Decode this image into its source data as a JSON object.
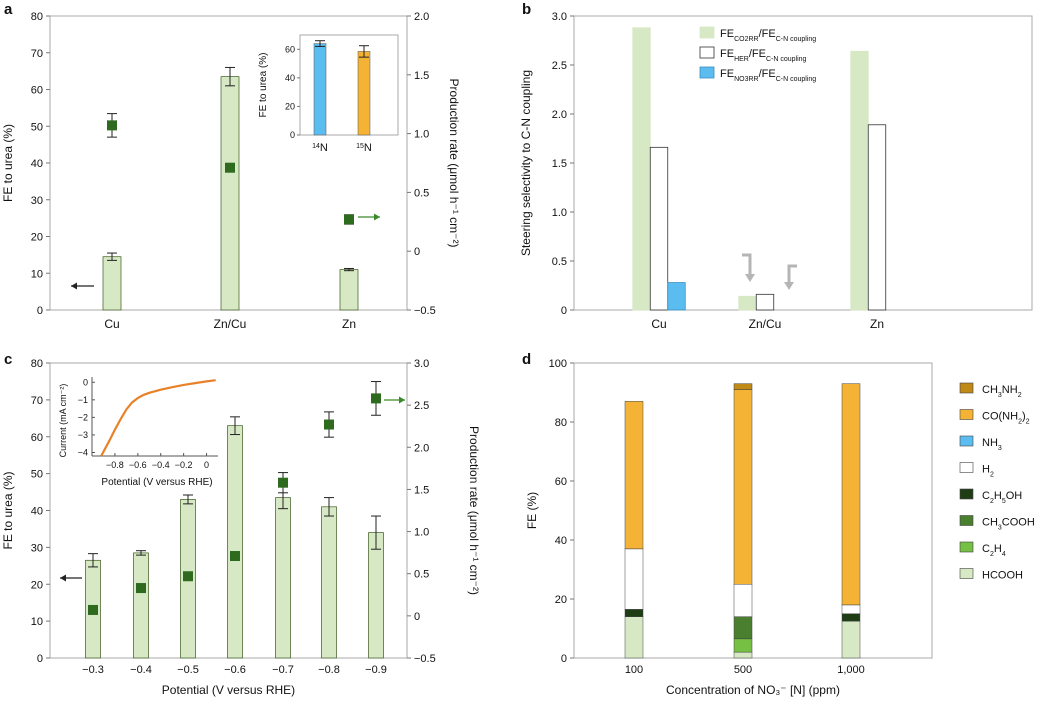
{
  "colors": {
    "bar_green": "#d6e9c4",
    "bar_edge": "#3c5a1e",
    "marker_green": "#2e6b1f",
    "axis_green": "#3a8a2a",
    "blue": "#5bbcf0",
    "orange_bar": "#f5b335",
    "curve_orange": "#e8822a",
    "arrow_grey": "#b5b5b5",
    "dark_green": "#1e3d14",
    "mid_green": "#4a7f2f",
    "light_green": "#76c043",
    "brown": "#c08a17"
  },
  "chart_data": [
    {
      "panel": "a",
      "type": "bar",
      "categories": [
        "Cu",
        "Zn/Cu",
        "Zn"
      ],
      "ylabel": "FE to urea (%)",
      "ylim": [
        0,
        80
      ],
      "yticks": [
        "0",
        "10",
        "20",
        "30",
        "40",
        "50",
        "60",
        "70",
        "80"
      ],
      "y2label": "Production rate (μmol h⁻¹ cm⁻²)",
      "y2lim": [
        -0.5,
        2.0
      ],
      "y2ticks": [
        "−0.5",
        "0",
        "0.5",
        "1.0",
        "1.5",
        "2.0"
      ],
      "fe_values": [
        14.5,
        63.5,
        11
      ],
      "fe_errors": [
        1,
        2.5,
        0.3
      ],
      "rate_values": [
        1.07,
        0.71,
        0.27
      ],
      "rate_errors": [
        0.1,
        0,
        0.04
      ],
      "inset": {
        "ylabel": "FE to urea (%)",
        "ylim": [
          0,
          70
        ],
        "yticks": [
          "0",
          "20",
          "40",
          "60"
        ],
        "categories": [
          "14N",
          "15N"
        ],
        "category_labels": [
          {
            "sup": "14",
            "base": "N"
          },
          {
            "sup": "15",
            "base": "N"
          }
        ],
        "values": [
          64,
          58.5
        ],
        "errors": [
          2,
          4
        ]
      }
    },
    {
      "panel": "b",
      "type": "bar",
      "categories": [
        "Cu",
        "Zn/Cu",
        "Zn"
      ],
      "ylabel": "Steering selectivity to C-N coupling",
      "ylim": [
        0,
        3.0
      ],
      "yticks": [
        "0",
        "0.5",
        "1.0",
        "1.5",
        "2.0",
        "2.5",
        "3.0"
      ],
      "series": [
        {
          "name": "FE_CO2RR/FE_C-N coupling",
          "main": "FE",
          "sub1": "CO2RR",
          "sep": "/FE",
          "sub2": "C-N coupling",
          "values": [
            2.88,
            0.14,
            2.64
          ]
        },
        {
          "name": "FE_HER/FE_C-N coupling",
          "main": "FE",
          "sub1": "HER",
          "sep": "/FE",
          "sub2": "C-N coupling",
          "values": [
            1.66,
            0.16,
            1.89
          ]
        },
        {
          "name": "FE_NO3RR/FE_C-N coupling",
          "main": "FE",
          "sub1": "NO3RR",
          "sep": "/FE",
          "sub2": "C-N coupling",
          "values": [
            0.28,
            0,
            0
          ]
        }
      ]
    },
    {
      "panel": "c",
      "type": "bar",
      "xlabel": "Potential (V versus RHE)",
      "categories": [
        "−0.3",
        "−0.4",
        "−0.5",
        "−0.6",
        "−0.7",
        "−0.8",
        "−0.9"
      ],
      "ylabel": "FE to urea (%)",
      "ylim": [
        0,
        80
      ],
      "yticks": [
        "0",
        "10",
        "20",
        "30",
        "40",
        "50",
        "60",
        "70",
        "80"
      ],
      "y2label": "Production rate (μmol h⁻¹ cm⁻²)",
      "y2lim": [
        -0.5,
        3.0
      ],
      "y2ticks": [
        "−0.5",
        "0",
        "0.5",
        "1.0",
        "1.5",
        "2.0",
        "2.5",
        "3.0"
      ],
      "fe_values": [
        26.5,
        28.5,
        43,
        63,
        43.5,
        41,
        34
      ],
      "fe_errors": [
        1.8,
        0.6,
        1.2,
        2.4,
        3,
        2.5,
        4.5
      ],
      "rate_values": [
        0.07,
        0.33,
        0.47,
        0.71,
        1.58,
        2.27,
        2.58
      ],
      "rate_errors": [
        0,
        0,
        0,
        0,
        0.12,
        0.15,
        0.2
      ],
      "inset": {
        "type": "line",
        "xlabel": "Potential (V versus RHE)",
        "ylabel": "Current (mA cm⁻²)",
        "xlim": [
          -1.0,
          0.1
        ],
        "ylim": [
          -4.2,
          0.3
        ],
        "xticks": [
          "−0.8",
          "−0.6",
          "−0.4",
          "−0.2",
          "0"
        ],
        "yticks": [
          "0",
          "−1",
          "−2",
          "−3",
          "−4"
        ],
        "x": [
          -0.92,
          -0.85,
          -0.8,
          -0.75,
          -0.7,
          -0.65,
          -0.6,
          -0.55,
          -0.5,
          -0.4,
          -0.3,
          -0.2,
          -0.1,
          0.0,
          0.08
        ],
        "y": [
          -4.2,
          -3.35,
          -2.7,
          -2.1,
          -1.55,
          -1.15,
          -0.9,
          -0.72,
          -0.6,
          -0.42,
          -0.28,
          -0.15,
          -0.05,
          0.05,
          0.12
        ]
      }
    },
    {
      "panel": "d",
      "type": "bar",
      "stacked": true,
      "xlabel": "Concentration of NO₃⁻ [N] (ppm)",
      "categories": [
        "100",
        "500",
        "1,000"
      ],
      "ylabel": "FE (%)",
      "ylim": [
        0,
        100
      ],
      "yticks": [
        "0",
        "20",
        "40",
        "60",
        "80",
        "100"
      ],
      "series": [
        {
          "name": "HCOOH",
          "values": [
            14,
            2,
            12.5
          ]
        },
        {
          "name": "C2H4",
          "values": [
            0,
            4.5,
            0
          ]
        },
        {
          "name": "CH3COOH",
          "values": [
            0,
            7.5,
            0
          ]
        },
        {
          "name": "C2H5OH",
          "values": [
            2.5,
            0,
            2.5
          ]
        },
        {
          "name": "H2",
          "values": [
            20.5,
            11,
            3
          ]
        },
        {
          "name": "NH3",
          "values": [
            0,
            0,
            0
          ]
        },
        {
          "name": "CO(NH2)2",
          "values": [
            50,
            66,
            75
          ]
        },
        {
          "name": "CH3NH2",
          "values": [
            0,
            2,
            0
          ]
        }
      ]
    }
  ],
  "panels": {
    "a": {
      "letter": "a"
    },
    "b": {
      "letter": "b"
    },
    "c": {
      "letter": "c"
    },
    "d": {
      "letter": "d"
    }
  }
}
